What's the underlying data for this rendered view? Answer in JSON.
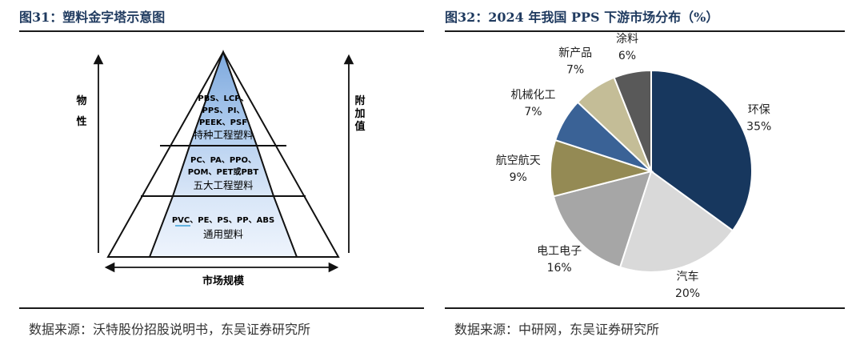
{
  "left": {
    "title": "图31：塑料金字塔示意图",
    "source": "数据来源：沃特股份招股说明书，东吴证券研究所",
    "left_axis_label": [
      "物",
      "性"
    ],
    "right_axis_label": [
      "附",
      "加",
      "值"
    ],
    "bottom_axis_label": "市场规模",
    "tiers": [
      {
        "lines": [
          "PBS、LCP、",
          "PPS、PI、",
          "PEEK、PSF"
        ],
        "name": "特种工程塑料"
      },
      {
        "lines": [
          "PC、PA、PPO、",
          "POM、PET或PBT"
        ],
        "name": "五大工程塑料"
      },
      {
        "lines": [
          "PVC、PE、PS、PP、ABS"
        ],
        "name": "通用塑料"
      }
    ]
  },
  "right": {
    "title": "图32：2024 年我国 PPS 下游市场分布（%）",
    "source": "数据来源：中研网，东吴证券研究所"
  },
  "chart_data": {
    "type": "pie",
    "title": "2024 年我国 PPS 下游市场分布（%）",
    "labels": [
      "环保",
      "汽车",
      "电工电子",
      "航空航天",
      "机械化工",
      "新产品",
      "涂料"
    ],
    "values": [
      35,
      20,
      16,
      9,
      7,
      7,
      6
    ],
    "value_labels": [
      "35%",
      "20%",
      "16%",
      "9%",
      "7%",
      "7%",
      "6%"
    ],
    "colors": [
      "#17375e",
      "#d9d9d9",
      "#a6a6a6",
      "#948a54",
      "#3a6296",
      "#c4bd97",
      "#595959"
    ],
    "start_angle": "12 o'clock",
    "direction": "clockwise"
  }
}
